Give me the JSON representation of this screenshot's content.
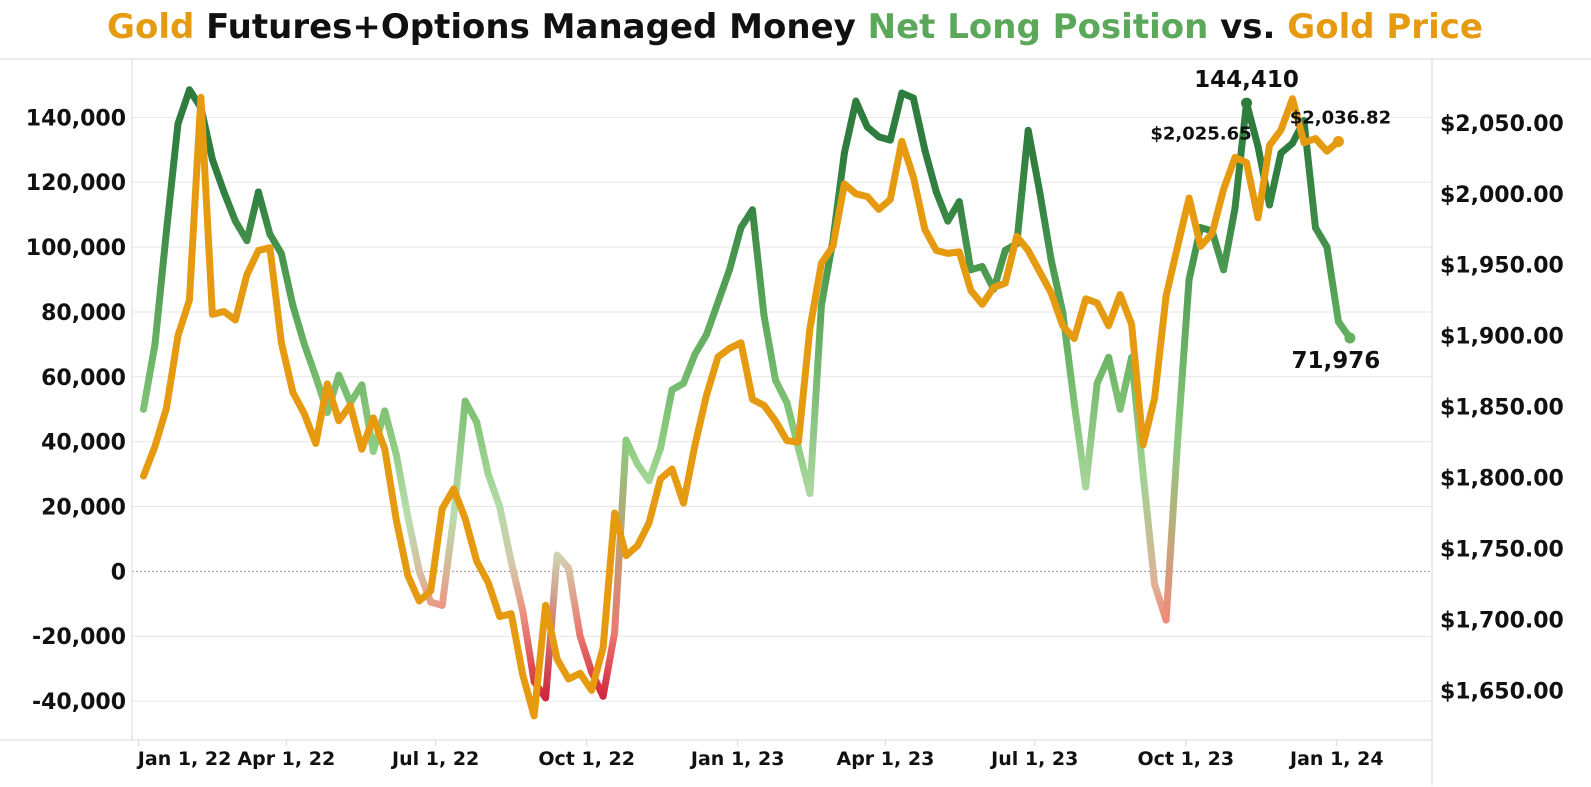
{
  "title": {
    "part1": "Gold",
    "part2": " Futures+Options Managed Money ",
    "part3": "Net Long Position",
    "part4": " vs. ",
    "part5": "Gold Price"
  },
  "colors": {
    "gold": "#E69A10",
    "green_dark": "#2E7D3E",
    "green_mid": "#5BA85A",
    "green_light": "#8CCB7E",
    "red": "#D0213A",
    "salmon": "#F08A7A",
    "grid": "#E6E6E6",
    "zero_line": "#999999"
  },
  "chart_data": {
    "type": "line",
    "x_axis": {
      "ticks": [
        "Jan 1, 22",
        "Apr 1, 22",
        "Jul 1, 22",
        "Oct 1, 22",
        "Jan 1, 23",
        "Apr 1, 23",
        "Jul 1, 23",
        "Oct 1, 23",
        "Jan 1, 24"
      ],
      "range": [
        "2021-12-28",
        "2024-02-28"
      ]
    },
    "y_left": {
      "range": [
        -52000,
        158000
      ],
      "ticks": [
        "140,000",
        "120,000",
        "100,000",
        "80,000",
        "60,000",
        "40,000",
        "20,000",
        "0",
        "-20,000",
        "-40,000"
      ],
      "tick_values": [
        140000,
        120000,
        100000,
        80000,
        60000,
        40000,
        20000,
        0,
        -20000,
        -40000
      ]
    },
    "y_right": {
      "range": [
        1615,
        2095
      ],
      "ticks": [
        "$2,050.00",
        "$2,000.00",
        "$1,950.00",
        "$1,900.00",
        "$1,850.00",
        "$1,800.00",
        "$1,750.00",
        "$1,700.00",
        "$1,650.00"
      ],
      "tick_values": [
        2050,
        2000,
        1950,
        1900,
        1850,
        1800,
        1750,
        1700,
        1650
      ]
    },
    "grid": true,
    "series": [
      {
        "name": "Net Long Position",
        "axis": "left",
        "points": [
          [
            "2022-01-04",
            50000
          ],
          [
            "2022-01-11",
            70000
          ],
          [
            "2022-01-18",
            105000
          ],
          [
            "2022-01-25",
            138000
          ],
          [
            "2022-02-01",
            148500
          ],
          [
            "2022-02-08",
            143000
          ],
          [
            "2022-02-15",
            127000
          ],
          [
            "2022-02-22",
            117000
          ],
          [
            "2022-03-01",
            108000
          ],
          [
            "2022-03-08",
            102000
          ],
          [
            "2022-03-15",
            117000
          ],
          [
            "2022-03-22",
            104000
          ],
          [
            "2022-03-29",
            98000
          ],
          [
            "2022-04-05",
            82000
          ],
          [
            "2022-04-12",
            70000
          ],
          [
            "2022-04-19",
            60000
          ],
          [
            "2022-04-26",
            49000
          ],
          [
            "2022-05-03",
            60500
          ],
          [
            "2022-05-10",
            52000
          ],
          [
            "2022-05-17",
            57500
          ],
          [
            "2022-05-24",
            37000
          ],
          [
            "2022-05-31",
            49500
          ],
          [
            "2022-06-07",
            36000
          ],
          [
            "2022-06-14",
            17000
          ],
          [
            "2022-06-21",
            0
          ],
          [
            "2022-06-28",
            -9500
          ],
          [
            "2022-07-05",
            -10500
          ],
          [
            "2022-07-12",
            17000
          ],
          [
            "2022-07-19",
            52500
          ],
          [
            "2022-07-26",
            46000
          ],
          [
            "2022-08-02",
            30000
          ],
          [
            "2022-08-09",
            20000
          ],
          [
            "2022-08-16",
            3000
          ],
          [
            "2022-08-23",
            -12000
          ],
          [
            "2022-08-30",
            -34000
          ],
          [
            "2022-09-06",
            -39000
          ],
          [
            "2022-09-13",
            5000
          ],
          [
            "2022-09-20",
            1000
          ],
          [
            "2022-09-27",
            -20000
          ],
          [
            "2022-10-04",
            -31000
          ],
          [
            "2022-10-11",
            -38500
          ],
          [
            "2022-10-18",
            -19000
          ],
          [
            "2022-10-25",
            40500
          ],
          [
            "2022-11-01",
            33000
          ],
          [
            "2022-11-08",
            28000
          ],
          [
            "2022-11-15",
            38000
          ],
          [
            "2022-11-22",
            56000
          ],
          [
            "2022-11-29",
            58000
          ],
          [
            "2022-12-06",
            67000
          ],
          [
            "2022-12-13",
            73000
          ],
          [
            "2022-12-20",
            83000
          ],
          [
            "2022-12-27",
            93000
          ],
          [
            "2023-01-03",
            106000
          ],
          [
            "2023-01-10",
            111500
          ],
          [
            "2023-01-17",
            79000
          ],
          [
            "2023-01-24",
            59000
          ],
          [
            "2023-01-31",
            52000
          ],
          [
            "2023-02-07",
            38000
          ],
          [
            "2023-02-14",
            24000
          ],
          [
            "2023-02-21",
            82000
          ],
          [
            "2023-02-28",
            102000
          ],
          [
            "2023-03-07",
            129000
          ],
          [
            "2023-03-14",
            145000
          ],
          [
            "2023-03-21",
            137000
          ],
          [
            "2023-03-28",
            134000
          ],
          [
            "2023-04-04",
            133000
          ],
          [
            "2023-04-11",
            147500
          ],
          [
            "2023-04-18",
            146000
          ],
          [
            "2023-04-25",
            130000
          ],
          [
            "2023-05-02",
            117000
          ],
          [
            "2023-05-09",
            108000
          ],
          [
            "2023-05-16",
            114000
          ],
          [
            "2023-05-23",
            93000
          ],
          [
            "2023-05-30",
            94000
          ],
          [
            "2023-06-06",
            87000
          ],
          [
            "2023-06-13",
            99000
          ],
          [
            "2023-06-20",
            101000
          ],
          [
            "2023-06-27",
            136000
          ],
          [
            "2023-07-04",
            117000
          ],
          [
            "2023-07-11",
            96000
          ],
          [
            "2023-07-18",
            80000
          ],
          [
            "2023-07-25",
            52000
          ],
          [
            "2023-08-01",
            26000
          ],
          [
            "2023-08-08",
            58000
          ],
          [
            "2023-08-15",
            66000
          ],
          [
            "2023-08-22",
            50000
          ],
          [
            "2023-08-29",
            66000
          ],
          [
            "2023-09-05",
            30000
          ],
          [
            "2023-09-12",
            -4000
          ],
          [
            "2023-09-19",
            -15000
          ],
          [
            "2023-09-26",
            40000
          ],
          [
            "2023-10-03",
            90000
          ],
          [
            "2023-10-10",
            106000
          ],
          [
            "2023-10-17",
            105000
          ],
          [
            "2023-10-24",
            93000
          ],
          [
            "2023-10-31",
            112000
          ],
          [
            "2023-11-07",
            144410
          ],
          [
            "2023-11-14",
            131000
          ],
          [
            "2023-11-21",
            113000
          ],
          [
            "2023-11-28",
            129000
          ],
          [
            "2023-12-05",
            132000
          ],
          [
            "2023-12-12",
            139000
          ],
          [
            "2023-12-19",
            106000
          ],
          [
            "2023-12-26",
            100000
          ],
          [
            "2024-01-02",
            77000
          ],
          [
            "2024-01-09",
            71976
          ]
        ]
      },
      {
        "name": "Gold Price",
        "axis": "right",
        "points": [
          [
            "2022-01-04",
            1801
          ],
          [
            "2022-01-11",
            1822
          ],
          [
            "2022-01-18",
            1849
          ],
          [
            "2022-01-25",
            1900
          ],
          [
            "2022-02-01",
            1925
          ],
          [
            "2022-02-08",
            2068
          ],
          [
            "2022-02-15",
            1915
          ],
          [
            "2022-02-22",
            1917
          ],
          [
            "2022-03-01",
            1911
          ],
          [
            "2022-03-08",
            1943
          ],
          [
            "2022-03-15",
            1960
          ],
          [
            "2022-03-22",
            1962
          ],
          [
            "2022-03-29",
            1895
          ],
          [
            "2022-04-05",
            1860
          ],
          [
            "2022-04-12",
            1845
          ],
          [
            "2022-04-19",
            1824
          ],
          [
            "2022-04-26",
            1866
          ],
          [
            "2022-05-03",
            1840
          ],
          [
            "2022-05-10",
            1851
          ],
          [
            "2022-05-17",
            1820
          ],
          [
            "2022-05-24",
            1842
          ],
          [
            "2022-05-31",
            1820
          ],
          [
            "2022-06-07",
            1770
          ],
          [
            "2022-06-14",
            1731
          ],
          [
            "2022-06-21",
            1713
          ],
          [
            "2022-06-28",
            1720
          ],
          [
            "2022-07-05",
            1778
          ],
          [
            "2022-07-12",
            1792
          ],
          [
            "2022-07-19",
            1771
          ],
          [
            "2022-07-26",
            1741
          ],
          [
            "2022-08-02",
            1726
          ],
          [
            "2022-08-09",
            1702
          ],
          [
            "2022-08-16",
            1704
          ],
          [
            "2022-08-23",
            1661
          ],
          [
            "2022-08-30",
            1632
          ],
          [
            "2022-09-06",
            1710
          ],
          [
            "2022-09-13",
            1672
          ],
          [
            "2022-09-20",
            1658
          ],
          [
            "2022-09-27",
            1662
          ],
          [
            "2022-10-04",
            1650
          ],
          [
            "2022-10-11",
            1680
          ],
          [
            "2022-10-18",
            1775
          ],
          [
            "2022-10-25",
            1745
          ],
          [
            "2022-11-01",
            1752
          ],
          [
            "2022-11-08",
            1768
          ],
          [
            "2022-11-15",
            1799
          ],
          [
            "2022-11-22",
            1806
          ],
          [
            "2022-11-29",
            1782
          ],
          [
            "2022-12-06",
            1823
          ],
          [
            "2022-12-13",
            1858
          ],
          [
            "2022-12-20",
            1885
          ],
          [
            "2022-12-27",
            1891
          ],
          [
            "2023-01-03",
            1895
          ],
          [
            "2023-01-10",
            1855
          ],
          [
            "2023-01-17",
            1851
          ],
          [
            "2023-01-24",
            1840
          ],
          [
            "2023-01-31",
            1826
          ],
          [
            "2023-02-07",
            1825
          ],
          [
            "2023-02-14",
            1905
          ],
          [
            "2023-02-21",
            1951
          ],
          [
            "2023-02-28",
            1963
          ],
          [
            "2023-03-07",
            2007
          ],
          [
            "2023-03-14",
            2000
          ],
          [
            "2023-03-21",
            1998
          ],
          [
            "2023-03-28",
            1989
          ],
          [
            "2023-04-04",
            1996
          ],
          [
            "2023-04-11",
            2037
          ],
          [
            "2023-04-18",
            2012
          ],
          [
            "2023-04-25",
            1975
          ],
          [
            "2023-05-02",
            1960
          ],
          [
            "2023-05-09",
            1958
          ],
          [
            "2023-05-16",
            1959
          ],
          [
            "2023-05-23",
            1932
          ],
          [
            "2023-05-30",
            1922
          ],
          [
            "2023-06-06",
            1934
          ],
          [
            "2023-06-13",
            1937
          ],
          [
            "2023-06-20",
            1970
          ],
          [
            "2023-06-27",
            1960
          ],
          [
            "2023-07-04",
            1945
          ],
          [
            "2023-07-11",
            1930
          ],
          [
            "2023-07-18",
            1907
          ],
          [
            "2023-07-25",
            1898
          ],
          [
            "2023-08-01",
            1926
          ],
          [
            "2023-08-08",
            1923
          ],
          [
            "2023-08-15",
            1907
          ],
          [
            "2023-08-22",
            1929
          ],
          [
            "2023-08-29",
            1908
          ],
          [
            "2023-09-05",
            1823
          ],
          [
            "2023-09-12",
            1856
          ],
          [
            "2023-09-19",
            1928
          ],
          [
            "2023-09-26",
            1963
          ],
          [
            "2023-10-03",
            1997
          ],
          [
            "2023-10-10",
            1963
          ],
          [
            "2023-10-17",
            1972
          ],
          [
            "2023-10-24",
            2003
          ],
          [
            "2023-10-31",
            2025.65
          ],
          [
            "2023-11-07",
            2022
          ],
          [
            "2023-11-14",
            1983
          ],
          [
            "2023-11-21",
            2034
          ],
          [
            "2023-11-28",
            2045
          ],
          [
            "2023-12-05",
            2067
          ],
          [
            "2023-12-12",
            2036
          ],
          [
            "2023-12-19",
            2039
          ],
          [
            "2023-12-26",
            2030
          ],
          [
            "2024-01-02",
            2036.82
          ]
        ]
      }
    ],
    "annotations": [
      {
        "text": "144,410",
        "series": "Net Long Position",
        "at": [
          "2023-11-07",
          144410
        ]
      },
      {
        "text": "71,976",
        "series": "Net Long Position",
        "at": [
          "2024-01-09",
          71976
        ]
      },
      {
        "text": "$2,025.65",
        "series": "Gold Price",
        "at": [
          "2023-10-31",
          2025.65
        ]
      },
      {
        "text": "$2,036.82",
        "series": "Gold Price",
        "at": [
          "2024-01-02",
          2036.82
        ]
      }
    ]
  }
}
